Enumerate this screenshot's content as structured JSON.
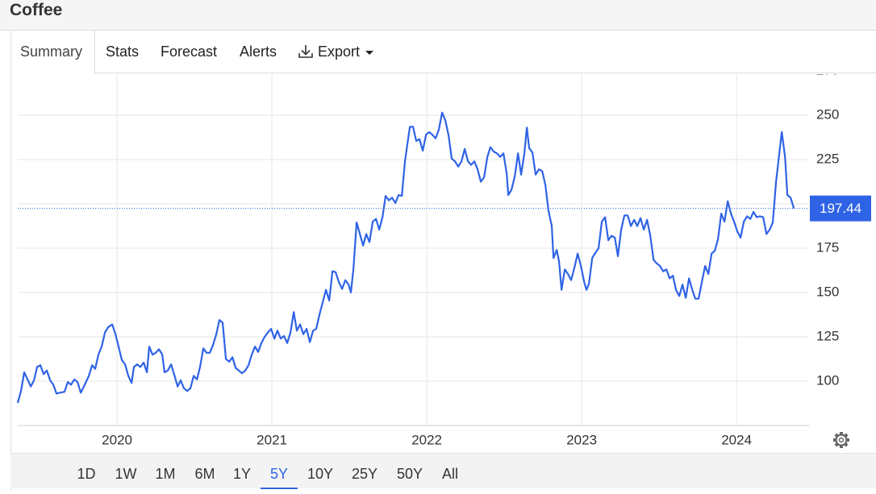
{
  "header": {
    "title": "Coffee"
  },
  "tabs": [
    "Summary",
    "Stats",
    "Forecast",
    "Alerts",
    "Export"
  ],
  "range_selector": {
    "options": [
      "1D",
      "1W",
      "1M",
      "6M",
      "1Y",
      "5Y",
      "10Y",
      "25Y",
      "50Y",
      "All"
    ],
    "active": 5
  },
  "chart_data": {
    "type": "line",
    "color": "#2f63e6",
    "grid": true,
    "xlim": [
      2019.359,
      2024.468
    ],
    "xticks": [
      2020,
      2021,
      2022,
      2023,
      2024
    ],
    "ylim": [
      75,
      275
    ],
    "yticks": [
      100,
      125,
      150,
      175,
      200,
      225,
      250,
      275
    ],
    "x": [
      2019.359,
      2019.38,
      2019.401,
      2019.422,
      2019.443,
      2019.464,
      2019.484,
      2019.505,
      2019.526,
      2019.547,
      2019.568,
      2019.589,
      2019.609,
      2019.63,
      2019.661,
      2019.682,
      2019.703,
      2019.724,
      2019.745,
      2019.766,
      2019.786,
      2019.818,
      2019.839,
      2019.859,
      2019.88,
      2019.901,
      2019.922,
      2019.943,
      2019.969,
      2019.99,
      2020.01,
      2020.031,
      2020.052,
      2020.073,
      2020.094,
      2020.109,
      2020.13,
      2020.151,
      2020.172,
      2020.193,
      2020.208,
      2020.229,
      2020.25,
      2020.271,
      2020.292,
      2020.307,
      2020.328,
      2020.349,
      2020.37,
      2020.391,
      2020.411,
      2020.432,
      2020.453,
      2020.474,
      2020.495,
      2020.516,
      2020.536,
      2020.557,
      2020.578,
      2020.599,
      2020.62,
      2020.641,
      2020.661,
      2020.682,
      2020.703,
      2020.724,
      2020.745,
      2020.766,
      2020.786,
      2020.807,
      2020.828,
      2020.849,
      2020.87,
      2020.891,
      2020.911,
      2020.932,
      2020.953,
      2020.974,
      2020.995,
      2021.016,
      2021.036,
      2021.057,
      2021.078,
      2021.099,
      2021.12,
      2021.141,
      2021.161,
      2021.182,
      2021.203,
      2021.224,
      2021.245,
      2021.266,
      2021.286,
      2021.307,
      2021.328,
      2021.349,
      2021.37,
      2021.391,
      2021.411,
      2021.432,
      2021.453,
      2021.474,
      2021.495,
      2021.51,
      2021.526,
      2021.547,
      2021.568,
      2021.589,
      2021.609,
      2021.63,
      2021.651,
      2021.672,
      2021.693,
      2021.714,
      2021.734,
      2021.755,
      2021.776,
      2021.797,
      2021.818,
      2021.839,
      2021.859,
      2021.88,
      2021.891,
      2021.911,
      2021.932,
      2021.953,
      2021.974,
      2021.995,
      2022.016,
      2022.036,
      2022.057,
      2022.078,
      2022.099,
      2022.12,
      2022.141,
      2022.161,
      2022.182,
      2022.203,
      2022.224,
      2022.245,
      2022.266,
      2022.286,
      2022.307,
      2022.328,
      2022.349,
      2022.37,
      2022.391,
      2022.411,
      2022.432,
      2022.453,
      2022.474,
      2022.495,
      2022.516,
      2022.526,
      2022.547,
      2022.568,
      2022.589,
      2022.609,
      2022.63,
      2022.646,
      2022.661,
      2022.682,
      2022.703,
      2022.724,
      2022.745,
      2022.766,
      2022.786,
      2022.807,
      2022.818,
      2022.839,
      2022.854,
      2022.87,
      2022.891,
      2022.911,
      2022.932,
      2022.953,
      2022.974,
      2022.995,
      2023.016,
      2023.031,
      2023.047,
      2023.068,
      2023.089,
      2023.109,
      2023.13,
      2023.151,
      2023.172,
      2023.193,
      2023.214,
      2023.234,
      2023.255,
      2023.276,
      2023.297,
      2023.318,
      2023.339,
      2023.359,
      2023.38,
      2023.401,
      2023.422,
      2023.443,
      2023.464,
      2023.484,
      2023.505,
      2023.526,
      2023.547,
      2023.568,
      2023.589,
      2023.609,
      2023.63,
      2023.651,
      2023.672,
      2023.693,
      2023.714,
      2023.734,
      2023.755,
      2023.776,
      2023.797,
      2023.818,
      2023.839,
      2023.859,
      2023.88,
      2023.901,
      2023.922,
      2023.943,
      2023.964,
      2023.984,
      2024.005,
      2024.026,
      2024.047,
      2024.068,
      2024.089,
      2024.109,
      2024.13,
      2024.151,
      2024.172,
      2024.193,
      2024.214,
      2024.234,
      2024.255,
      2024.276,
      2024.292,
      2024.313,
      2024.328,
      2024.349,
      2024.37
    ],
    "values": [
      87.7,
      94.5,
      105,
      101,
      97,
      100.5,
      108,
      109,
      104,
      106,
      100.5,
      98,
      93,
      93.5,
      94,
      99.5,
      98,
      101,
      99.5,
      93.5,
      97,
      103,
      109,
      107,
      115,
      119.5,
      127.5,
      130.5,
      132,
      126.5,
      119.5,
      112,
      109.5,
      103,
      99,
      108,
      109.5,
      108,
      110.5,
      105,
      119.5,
      115,
      116,
      118,
      115,
      105,
      106,
      109.5,
      103.5,
      97,
      100.5,
      96,
      94.5,
      96,
      103,
      101,
      108,
      118.5,
      116,
      116,
      120.5,
      126.5,
      134.5,
      133,
      112.5,
      111,
      113.5,
      107.5,
      106,
      104.5,
      106,
      109,
      115,
      119.5,
      116.5,
      121.5,
      125,
      127.5,
      129.5,
      124,
      128.5,
      124,
      125.5,
      121.5,
      127.5,
      139,
      128.5,
      132,
      126.5,
      129.5,
      122,
      128.5,
      129.5,
      137.5,
      144.5,
      151.5,
      145.5,
      162,
      161.5,
      156,
      152,
      157,
      154.5,
      150,
      163,
      189.5,
      183,
      176.5,
      183,
      178.5,
      190,
      191.5,
      185.5,
      192.5,
      204.5,
      202,
      203.5,
      200.5,
      205,
      204.5,
      224,
      237,
      243.5,
      243.5,
      235.5,
      236.5,
      230,
      239,
      240.5,
      239,
      237,
      242,
      251.5,
      247,
      238.5,
      225.5,
      224,
      221,
      224,
      231,
      224,
      222,
      224,
      219.5,
      212.5,
      215,
      226.5,
      232,
      229.5,
      228.5,
      226.5,
      228.5,
      217,
      205,
      208,
      215.5,
      228.5,
      216.5,
      228.5,
      243,
      231.5,
      229,
      216.5,
      219.5,
      218.5,
      210.5,
      196,
      187.5,
      169.5,
      174,
      167.5,
      151.5,
      163,
      160.5,
      157,
      164,
      172,
      165,
      156,
      151.5,
      155,
      169.5,
      172.5,
      175,
      190,
      192.5,
      179.5,
      182,
      181,
      170.5,
      185.5,
      193.5,
      193.5,
      187.5,
      191,
      187.5,
      192,
      185.5,
      191,
      182,
      168.5,
      166.5,
      165,
      162,
      163,
      158,
      159.5,
      151.5,
      148,
      154.5,
      147,
      158,
      151.5,
      146.5,
      146.5,
      156,
      165,
      160.5,
      172,
      173.5,
      180,
      194.5,
      190,
      201.5,
      194.5,
      190,
      184.5,
      181,
      190,
      193,
      191.5,
      195.5,
      192.5,
      193,
      192.5,
      183,
      185.5,
      189.5,
      212.5,
      228.5,
      240.5,
      226.5,
      205,
      203.5,
      197.44
    ]
  }
}
